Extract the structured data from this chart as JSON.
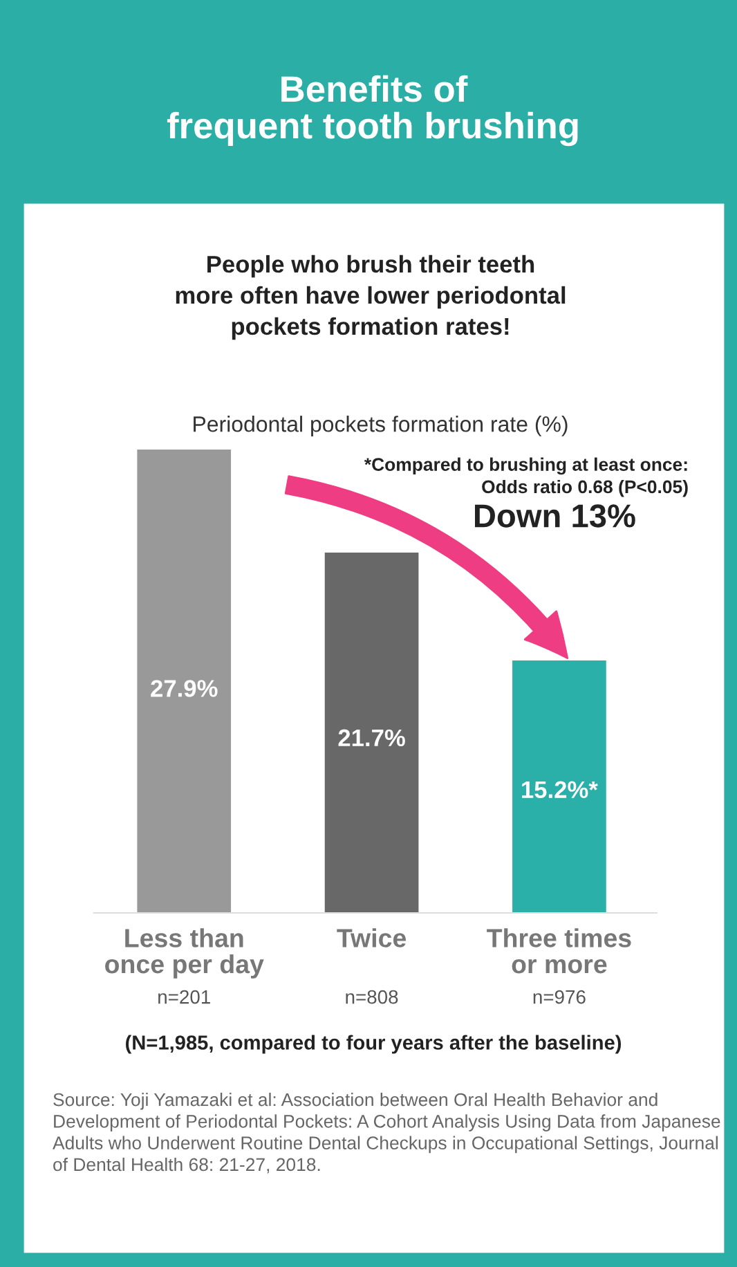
{
  "chart_data": {
    "type": "bar",
    "title": "Benefits of\nfrequent tooth brushing",
    "subtitle": "People who brush their teeth\nmore often have lower periodontal\npockets formation rates!",
    "ylabel": "Periodontal pockets formation rate (%)",
    "categories": [
      "Less than\nonce per day",
      "Twice",
      "Three times\nor more"
    ],
    "values": [
      27.9,
      21.7,
      15.2
    ],
    "colors": [
      "#999999",
      "#686868",
      "#2ab0a8"
    ],
    "value_labels": [
      "27.9%",
      "21.7%",
      "15.2%*"
    ],
    "annotations": [
      "n=201",
      "n=808",
      "n=976",
      "*Compared to brushing at least once:\nOdds ratio 0.68 (P<0.05)",
      "Down 13%",
      "(N=1,985, compared to four years after the baseline)",
      "Source: Yoji Yamazaki et al: Association between Oral Health Behavior and Development of Periodontal Pockets: A Cohort Analysis Using Data from Japanese Adults who Underwent Routine Dental Checkups in Occupational Settings, Journal of Dental Health 68: 21-27, 2018."
    ],
    "grid": false,
    "legend": false
  }
}
